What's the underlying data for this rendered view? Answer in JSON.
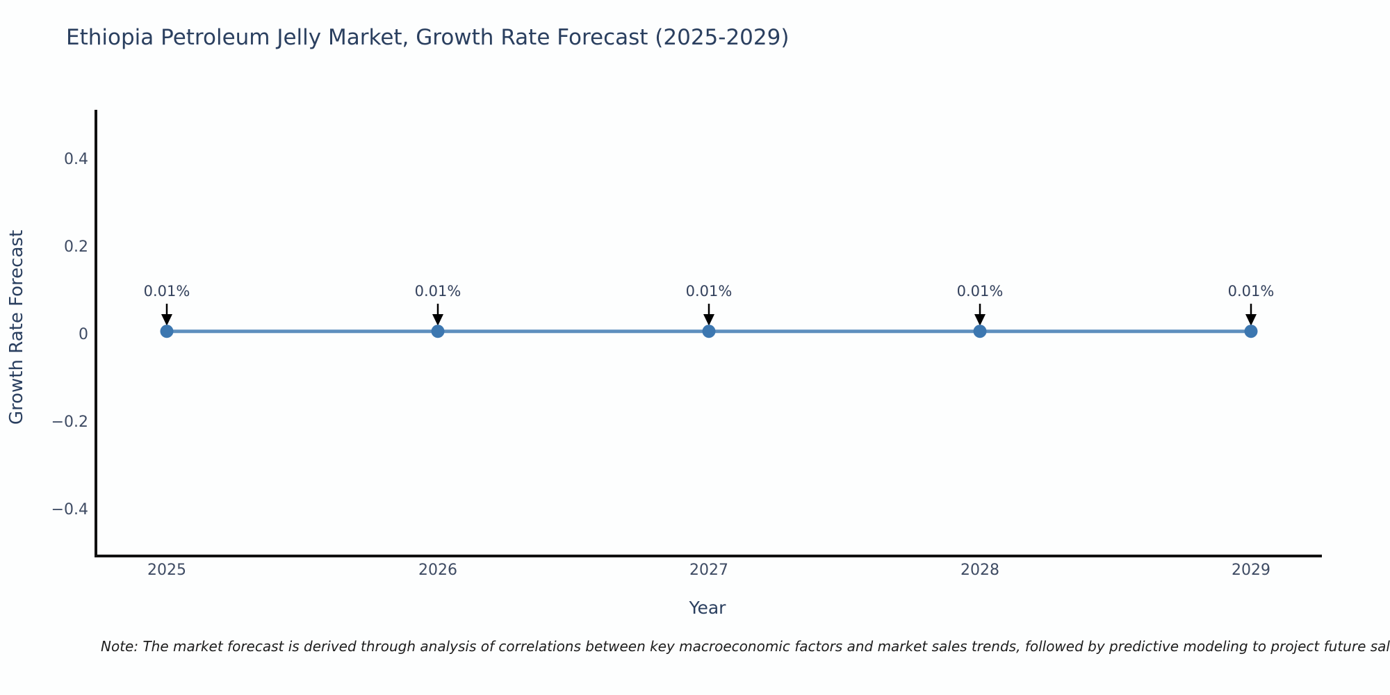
{
  "note": {
    "text": "Note: The market forecast is derived through analysis of correlations between key macroeconomic factors and market sales trends, followed by predictive modeling to project future sales"
  },
  "chart_data": {
    "type": "line",
    "title": "Ethiopia Petroleum Jelly Market, Growth Rate Forecast (2025-2029)",
    "xlabel": "Year",
    "ylabel": "Growth Rate Forecast",
    "x": [
      2025,
      2026,
      2027,
      2028,
      2029
    ],
    "x_tick_labels": [
      "2025",
      "2026",
      "2027",
      "2028",
      "2029"
    ],
    "series": [
      {
        "name": "Growth Rate Forecast",
        "values": [
          0.01,
          0.01,
          0.01,
          0.01,
          0.01
        ]
      }
    ],
    "point_labels": [
      "0.01%",
      "0.01%",
      "0.01%",
      "0.01%",
      "0.01%"
    ],
    "y_ticks": [
      {
        "value": 0.4,
        "label": "0.4"
      },
      {
        "value": 0.2,
        "label": "0.2"
      },
      {
        "value": 0,
        "label": "0"
      },
      {
        "value": -0.2,
        "label": "−0.2"
      },
      {
        "value": -0.4,
        "label": "−0.4"
      }
    ],
    "ylim": [
      -0.5,
      0.5
    ],
    "xlim_years": [
      2024.74,
      2029.26
    ],
    "grid": false,
    "legend": "none",
    "marker_shape": "circle",
    "annotation_arrow_direction": "down",
    "colors": {
      "line": "#5e8fbe",
      "marker": "#3c77b0",
      "axis_spine": "#111111",
      "title_text": "#2a3f5f",
      "tick_text": "#3e4b63",
      "annotation_text": "#33415c",
      "annotation_arrow": "#000000",
      "note_text": "#1c1c1c",
      "background": "#fdfefe"
    }
  }
}
